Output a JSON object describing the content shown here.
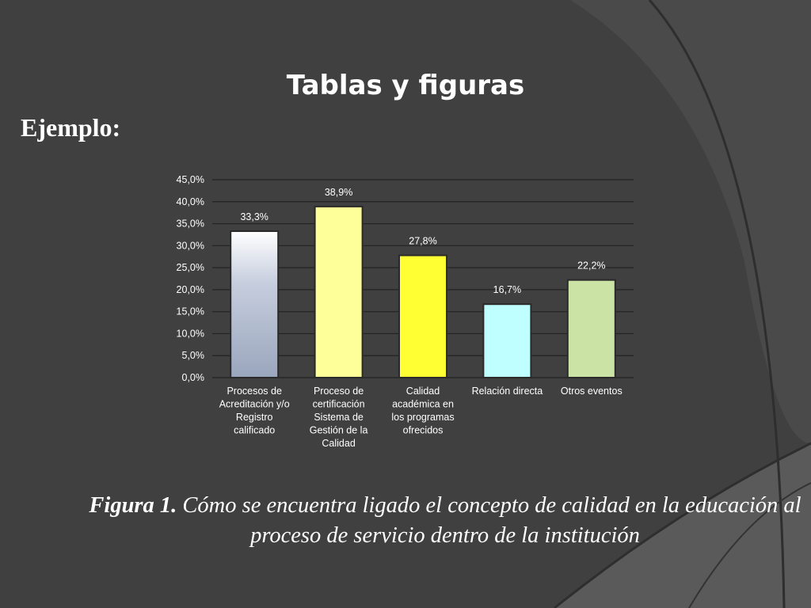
{
  "slide": {
    "title": "Tablas y figuras",
    "subtitle": "Ejemplo:",
    "caption_label": "Figura 1.",
    "caption_text": " Cómo se encuentra ligado el concepto de calidad en la educación al proceso de servicio dentro de la institución"
  },
  "colors": {
    "background": "#404040",
    "text": "#ffffff",
    "chart_text": "#ffffff"
  },
  "chart_data": {
    "type": "bar",
    "categories": [
      "Procesos de Acreditación y/o Registro calificado",
      "Proceso de certificación Sistema de Gestión de la Calidad",
      "Calidad académica en los programas ofrecidos",
      "Relación directa",
      "Otros eventos"
    ],
    "category_lines": [
      [
        "Procesos de",
        "Acreditación y/o",
        "Registro",
        "calificado"
      ],
      [
        "Proceso de",
        "certificación",
        "Sistema de",
        "Gestión de la",
        "Calidad"
      ],
      [
        "Calidad",
        "académica en",
        "los programas",
        "ofrecidos"
      ],
      [
        "Relación directa"
      ],
      [
        "Otros eventos"
      ]
    ],
    "values": [
      33.3,
      38.9,
      27.8,
      16.7,
      22.2
    ],
    "data_labels": [
      "33,3%",
      "38,9%",
      "27,8%",
      "16,7%",
      "22,2%"
    ],
    "bar_colors": [
      "#c9d1e0",
      "#ffff99",
      "#ffff33",
      "#bfffff",
      "#cce3a6"
    ],
    "y_ticks": [
      "0,0%",
      "5,0%",
      "10,0%",
      "15,0%",
      "20,0%",
      "25,0%",
      "30,0%",
      "35,0%",
      "40,0%",
      "45,0%"
    ],
    "ylim": [
      0,
      45
    ],
    "grid": true
  }
}
